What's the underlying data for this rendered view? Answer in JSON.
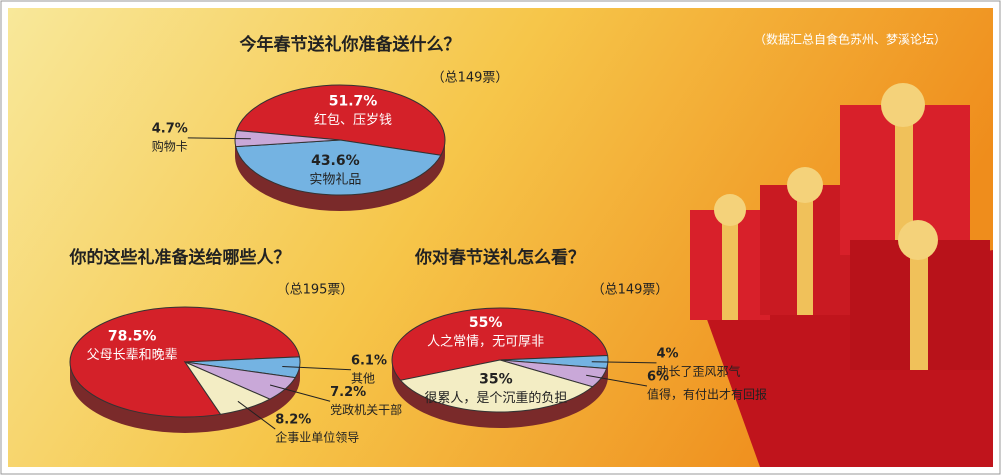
{
  "source": "（数据汇总自食色苏州、梦溪论坛）",
  "chart_data": [
    {
      "type": "pie",
      "title": "今年春节送礼你准备送什么？",
      "subtitle": "（总149票）",
      "categories": [
        "红包、压岁钱",
        "实物礼品",
        "购物卡"
      ],
      "values": [
        51.7,
        43.6,
        4.7
      ],
      "value_labels": [
        "51.7%",
        "43.6%",
        "4.7%"
      ],
      "colors": [
        "#d42129",
        "#74b3e2",
        "#c9a8d8"
      ]
    },
    {
      "type": "pie",
      "title": "你的这些礼准备送给哪些人？",
      "subtitle": "（总195票）",
      "categories": [
        "父母长辈和晚辈",
        "其他",
        "党政机关干部",
        "企事业单位领导"
      ],
      "values": [
        78.5,
        6.1,
        7.2,
        8.2
      ],
      "value_labels": [
        "78.5%",
        "6.1%",
        "7.2%",
        "8.2%"
      ],
      "colors": [
        "#d42129",
        "#74b3e2",
        "#c9a8d8",
        "#f3edc4"
      ]
    },
    {
      "type": "pie",
      "title": "你对春节送礼怎么看？",
      "subtitle": "（总149票）",
      "categories": [
        "人之常情，无可厚非",
        "助长了歪风邪气",
        "值得，有付出才有回报",
        "很累人，是个沉重的负担"
      ],
      "values": [
        55,
        4,
        6,
        35
      ],
      "value_labels": [
        "55%",
        "4%",
        "6%",
        "35%"
      ],
      "colors": [
        "#d42129",
        "#74b3e2",
        "#c9a8d8",
        "#f3edc4"
      ]
    }
  ]
}
